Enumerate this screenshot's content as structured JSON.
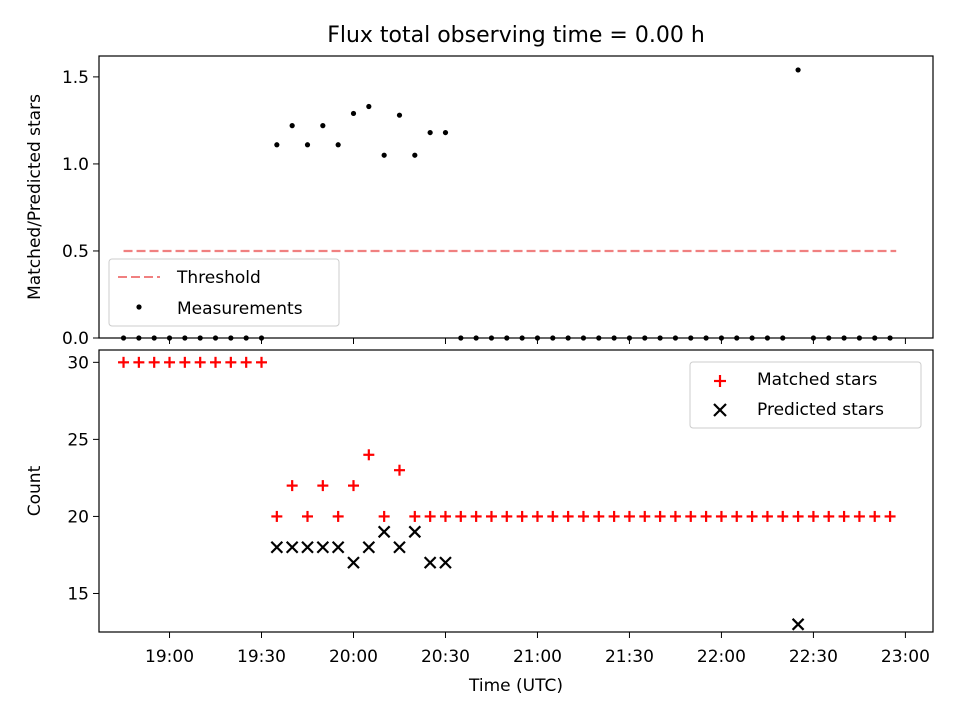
{
  "figure_title": "Flux total observing time = 0.00 h",
  "chart_data": [
    {
      "type": "scatter",
      "ylabel": "Matched/Predicted stars",
      "xlabel": "",
      "ylim": [
        0,
        1.62
      ],
      "yticks": [
        "0.0",
        "0.5",
        "1.0",
        "1.5"
      ],
      "grid": false,
      "legend_position": "bottom-left",
      "threshold": {
        "name": "Threshold",
        "value": 0.5,
        "x_start": "18:45",
        "x_end": "22:57",
        "color": "#f08080",
        "style": "dashed"
      },
      "series": [
        {
          "name": "Measurements",
          "color": "#000000",
          "marker": "dot",
          "x": [
            "18:45",
            "18:50",
            "18:55",
            "19:00",
            "19:05",
            "19:10",
            "19:15",
            "19:20",
            "19:25",
            "19:30",
            "19:35",
            "19:40",
            "19:45",
            "19:50",
            "19:55",
            "20:00",
            "20:05",
            "20:10",
            "20:15",
            "20:20",
            "20:25",
            "20:30",
            "20:35",
            "20:40",
            "20:45",
            "20:50",
            "20:55",
            "21:00",
            "21:05",
            "21:10",
            "21:15",
            "21:20",
            "21:25",
            "21:30",
            "21:35",
            "21:40",
            "21:45",
            "21:50",
            "21:55",
            "22:00",
            "22:05",
            "22:10",
            "22:15",
            "22:20",
            "22:25",
            "22:30",
            "22:35",
            "22:40",
            "22:45",
            "22:50",
            "22:55"
          ],
          "y": [
            0,
            0,
            0,
            0,
            0,
            0,
            0,
            0,
            0,
            0,
            1.11,
            1.22,
            1.11,
            1.22,
            1.11,
            1.29,
            1.33,
            1.05,
            1.28,
            1.05,
            1.18,
            1.18,
            0,
            0,
            0,
            0,
            0,
            0,
            0,
            0,
            0,
            0,
            0,
            0,
            0,
            0,
            0,
            0,
            0,
            0,
            0,
            0,
            0,
            0,
            1.54,
            0,
            0,
            0,
            0,
            0,
            0
          ]
        }
      ]
    },
    {
      "type": "scatter",
      "ylabel": "Count",
      "xlabel": "Time (UTC)",
      "ylim": [
        12.5,
        30.8
      ],
      "yticks": [
        "15",
        "20",
        "25",
        "30"
      ],
      "xlim": [
        "18:37",
        "23:09"
      ],
      "xticks": [
        "19:00",
        "19:30",
        "20:00",
        "20:30",
        "21:00",
        "21:30",
        "22:00",
        "22:30",
        "23:00"
      ],
      "grid": false,
      "legend_position": "top-right",
      "series": [
        {
          "name": "Matched stars",
          "color": "#ff0000",
          "marker": "plus",
          "x": [
            "18:45",
            "18:50",
            "18:55",
            "19:00",
            "19:05",
            "19:10",
            "19:15",
            "19:20",
            "19:25",
            "19:30",
            "19:35",
            "19:40",
            "19:45",
            "19:50",
            "19:55",
            "20:00",
            "20:05",
            "20:10",
            "20:15",
            "20:20",
            "20:25",
            "20:30",
            "20:35",
            "20:40",
            "20:45",
            "20:50",
            "20:55",
            "21:00",
            "21:05",
            "21:10",
            "21:15",
            "21:20",
            "21:25",
            "21:30",
            "21:35",
            "21:40",
            "21:45",
            "21:50",
            "21:55",
            "22:00",
            "22:05",
            "22:10",
            "22:15",
            "22:20",
            "22:25",
            "22:30",
            "22:35",
            "22:40",
            "22:45",
            "22:50",
            "22:55"
          ],
          "y": [
            30,
            30,
            30,
            30,
            30,
            30,
            30,
            30,
            30,
            30,
            20,
            22,
            20,
            22,
            20,
            22,
            24,
            20,
            23,
            20,
            20,
            20,
            20,
            20,
            20,
            20,
            20,
            20,
            20,
            20,
            20,
            20,
            20,
            20,
            20,
            20,
            20,
            20,
            20,
            20,
            20,
            20,
            20,
            20,
            20,
            20,
            20,
            20,
            20,
            20,
            20
          ]
        },
        {
          "name": "Predicted stars",
          "color": "#000000",
          "marker": "x",
          "x": [
            "19:35",
            "19:40",
            "19:45",
            "19:50",
            "19:55",
            "20:00",
            "20:05",
            "20:10",
            "20:15",
            "20:20",
            "20:25",
            "20:30",
            "22:25"
          ],
          "y": [
            18,
            18,
            18,
            18,
            18,
            17,
            18,
            19,
            18,
            19,
            17,
            17,
            13
          ]
        }
      ]
    }
  ]
}
